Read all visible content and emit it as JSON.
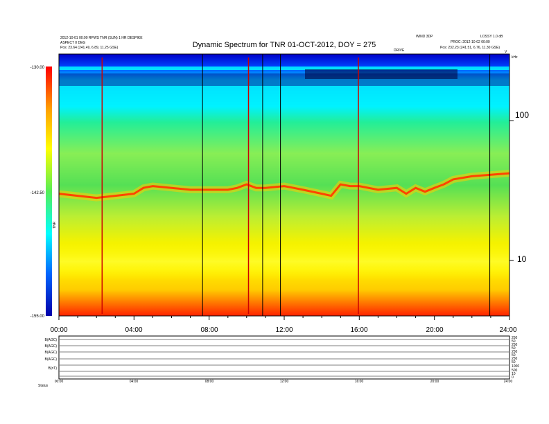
{
  "header": {
    "title": "Dynamic Spectrum for TNR 01-OCT-2012, DOY = 275",
    "left_line1": "2012-10-01 00:00 RPWS TNR (SUN) 1 HR DESPIKE",
    "left_line2": "ASPECT 0 DEG",
    "left_line3": "Pos:    23.64 (241.49, 6.89, 11.25 GSE)",
    "right_top_a": "WIND 3DP",
    "right_top_b": "LOSSY 1.0 dB",
    "right_line2": "PROC: 2012-10-02 00:00",
    "right_line3": "Pos:    232.23 (241.51, 6.76, 11.30 GSE)",
    "small_center": "DRIVE",
    "corner_label": "V"
  },
  "colors": {
    "low": "#0000aa",
    "mid": "#00ffff",
    "high": "#ff0000",
    "event_line": "#000000",
    "burst_line": "#cc0000"
  },
  "chart_data": [
    {
      "type": "heatmap",
      "title": "Dynamic Spectrum for TNR 01-OCT-2012, DOY = 275",
      "x_ticks": [
        "00:00",
        "04:00",
        "08:00",
        "12:00",
        "16:00",
        "20:00",
        "24:00"
      ],
      "x_range_hours": [
        0,
        24
      ],
      "y_scale": "log",
      "y_ticks": [
        "100",
        "10"
      ],
      "y_range": [
        4,
        300
      ],
      "y_unit_label": "kHz",
      "colorbar": {
        "ticks": [
          "-130.00",
          "-142.50",
          "-155.00"
        ],
        "range": [
          -155,
          -130
        ],
        "label": "TNR"
      },
      "plasma_line_kHz": {
        "hours": [
          0,
          1,
          2,
          3,
          4,
          4.5,
          5,
          6,
          7,
          8,
          9,
          9.5,
          10,
          10.5,
          11,
          12,
          12.5,
          13,
          14,
          14.5,
          15,
          15.5,
          16,
          17,
          18,
          18.5,
          19,
          19.5,
          20,
          20.5,
          21,
          22,
          23,
          24
        ],
        "values": [
          30,
          29,
          28,
          29,
          30,
          33,
          34,
          33,
          32,
          32,
          32,
          33,
          35,
          33,
          33,
          34,
          33,
          32,
          30,
          29,
          35,
          34,
          34,
          32,
          33,
          30,
          33,
          31,
          33,
          35,
          38,
          40,
          41,
          42
        ]
      },
      "vertical_event_lines_hours": [
        7.65,
        10.85,
        11.8,
        22.95
      ],
      "burst_lines_hours": [
        2.3,
        10.1,
        15.95
      ]
    },
    {
      "type": "line",
      "panel": "ancillary",
      "x_ticks": [
        "00:00",
        "04:00",
        "08:00",
        "12:00",
        "16:00",
        "20:00",
        "24:00"
      ],
      "rows": [
        {
          "label": "B(AGC)",
          "right_ticks": [
            "250",
            "50"
          ]
        },
        {
          "label": "B(AGC)",
          "right_ticks": [
            "250",
            "50"
          ]
        },
        {
          "label": "B(AGC)",
          "right_ticks": [
            "250",
            "50"
          ]
        },
        {
          "label": "B(AGC)",
          "right_ticks": [
            "250",
            "50"
          ]
        },
        {
          "label": "B(nT)",
          "right_ticks": [
            "1000",
            "500"
          ]
        },
        {
          "label": "",
          "right_ticks": [
            "10",
            "0"
          ]
        }
      ],
      "footer_label": "Status"
    }
  ]
}
